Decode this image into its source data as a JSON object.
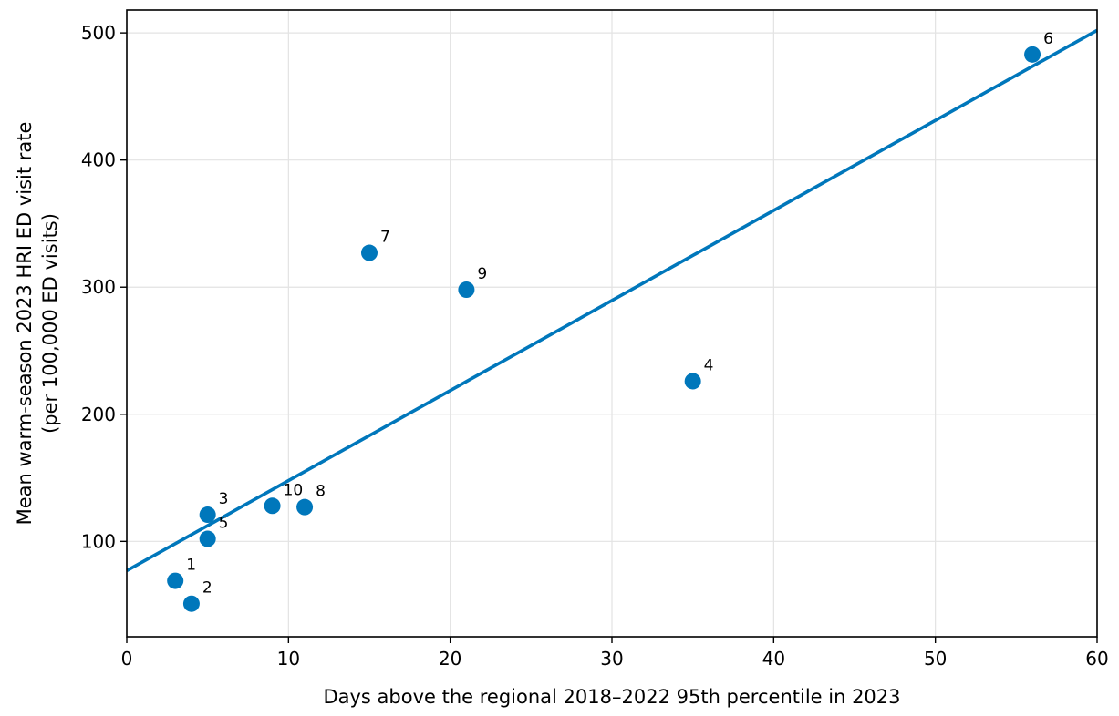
{
  "chart_data": {
    "type": "scatter",
    "xlabel": "Days above the regional 2018–2022 95th percentile in 2023",
    "ylabel_line1": "Mean warm-season 2023 HRI ED visit rate",
    "ylabel_line2": "(per 100,000 ED visits)",
    "xlim": [
      0,
      60
    ],
    "ylim": [
      25,
      518
    ],
    "xticks": [
      0,
      10,
      20,
      30,
      40,
      50,
      60
    ],
    "yticks": [
      100,
      200,
      300,
      400,
      500
    ],
    "grid": true,
    "point_color": "#0077bb",
    "line_color": "#0077bb",
    "points": [
      {
        "label": "1",
        "x": 3,
        "y": 69
      },
      {
        "label": "2",
        "x": 4,
        "y": 51
      },
      {
        "label": "3",
        "x": 5,
        "y": 121
      },
      {
        "label": "4",
        "x": 35,
        "y": 226
      },
      {
        "label": "5",
        "x": 5,
        "y": 102
      },
      {
        "label": "6",
        "x": 56,
        "y": 483
      },
      {
        "label": "7",
        "x": 15,
        "y": 327
      },
      {
        "label": "8",
        "x": 11,
        "y": 127
      },
      {
        "label": "9",
        "x": 21,
        "y": 298
      },
      {
        "label": "10",
        "x": 9,
        "y": 128
      }
    ],
    "fit_line": {
      "x": [
        0,
        60
      ],
      "y": [
        77,
        502
      ]
    }
  }
}
